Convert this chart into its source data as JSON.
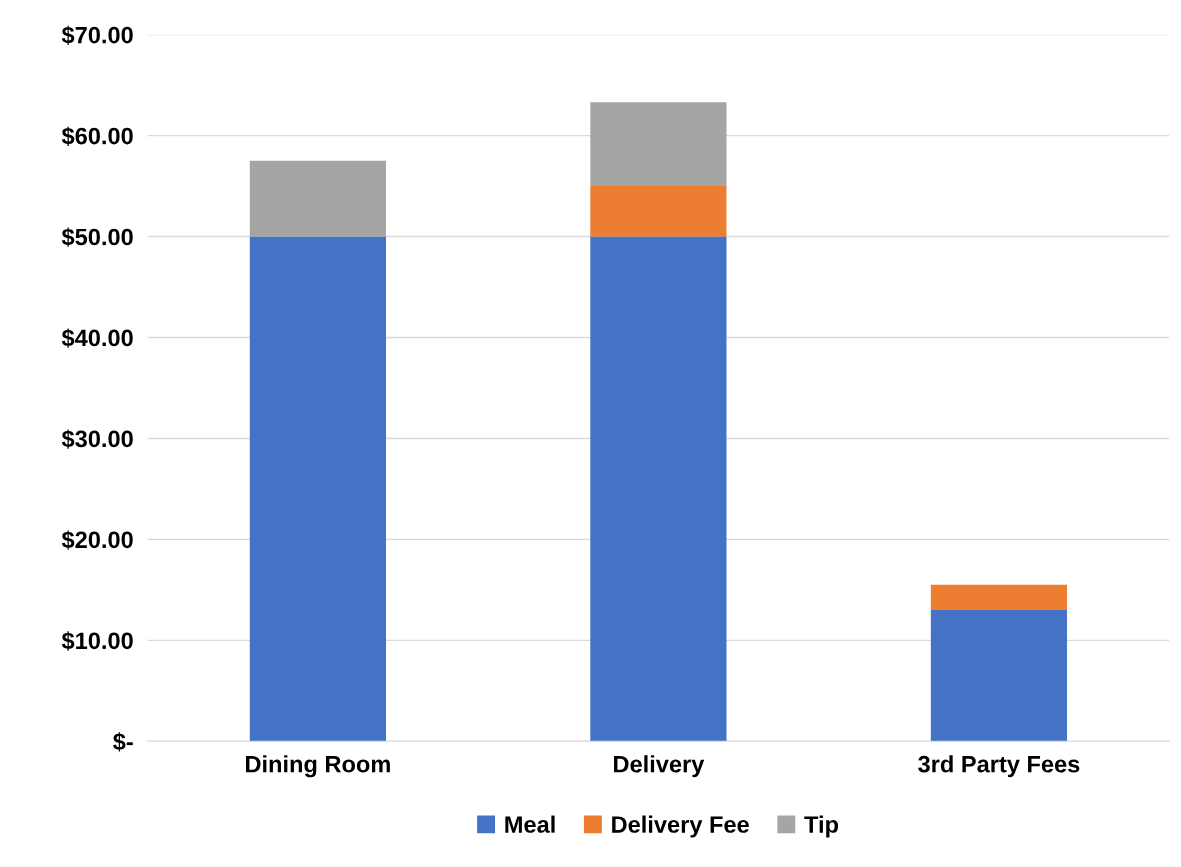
{
  "chart_data": {
    "type": "bar",
    "stacked": true,
    "categories": [
      "Dining Room",
      "Delivery",
      "3rd Party Fees"
    ],
    "series": [
      {
        "name": "Meal",
        "color": "#4472c4",
        "values": [
          50,
          50,
          13
        ]
      },
      {
        "name": "Delivery Fee",
        "color": "#ed7d31",
        "values": [
          null,
          5,
          2.5
        ]
      },
      {
        "name": "Tip",
        "color": "#a5a5a5",
        "values": [
          7.5,
          8.3,
          null
        ]
      }
    ],
    "ylim": [
      0,
      70
    ],
    "yticks": [
      {
        "value": 0,
        "label": "$-"
      },
      {
        "value": 10,
        "label": "$10.00"
      },
      {
        "value": 20,
        "label": "$20.00"
      },
      {
        "value": 30,
        "label": "$30.00"
      },
      {
        "value": 40,
        "label": "$40.00"
      },
      {
        "value": 50,
        "label": "$50.00"
      },
      {
        "value": 60,
        "label": "$60.00"
      },
      {
        "value": 70,
        "label": "$70.00"
      }
    ],
    "grid": "y",
    "legend": "bottom"
  }
}
